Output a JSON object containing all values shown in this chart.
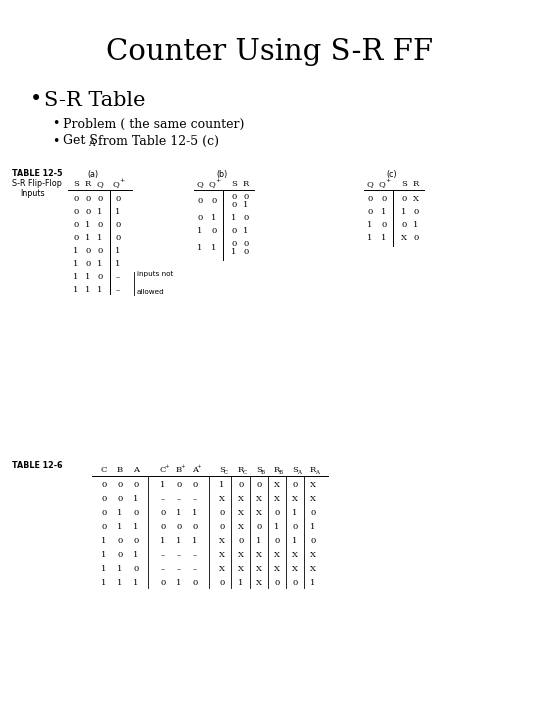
{
  "title": "Counter Using S-R FF",
  "bullet1": "S-R Table",
  "bullet2": "Problem ( the same counter)",
  "bullet3_pre": "Get S",
  "bullet3_sub": "A",
  "bullet3_post": " from Table 12-5 (c)",
  "bg_color": "#ffffff",
  "text_color": "#000000",
  "table_a_rows": [
    [
      "0",
      "0",
      "0",
      "0"
    ],
    [
      "0",
      "0",
      "1",
      "1"
    ],
    [
      "0",
      "1",
      "0",
      "0"
    ],
    [
      "0",
      "1",
      "1",
      "0"
    ],
    [
      "1",
      "0",
      "0",
      "1"
    ],
    [
      "1",
      "0",
      "1",
      "1"
    ],
    [
      "1",
      "1",
      "0",
      "–"
    ],
    [
      "1",
      "1",
      "1",
      "–"
    ]
  ],
  "table_c_rows": [
    [
      "0",
      "0",
      "0",
      "X"
    ],
    [
      "0",
      "1",
      "1",
      "0"
    ],
    [
      "1",
      "0",
      "0",
      "1"
    ],
    [
      "1",
      "1",
      "X",
      "0"
    ]
  ],
  "table6_rows": [
    [
      "0",
      "0",
      "0",
      "1",
      "0",
      "0",
      "1",
      "0",
      "0",
      "X",
      "0",
      "X"
    ],
    [
      "0",
      "0",
      "1",
      "–",
      "–",
      "–",
      "X",
      "X",
      "X",
      "X",
      "X",
      "X"
    ],
    [
      "0",
      "1",
      "0",
      "0",
      "1",
      "1",
      "0",
      "X",
      "X",
      "0",
      "1",
      "0"
    ],
    [
      "0",
      "1",
      "1",
      "0",
      "0",
      "0",
      "0",
      "X",
      "0",
      "1",
      "0",
      "1"
    ],
    [
      "1",
      "0",
      "0",
      "1",
      "1",
      "1",
      "X",
      "0",
      "1",
      "0",
      "1",
      "0"
    ],
    [
      "1",
      "0",
      "1",
      "–",
      "–",
      "–",
      "X",
      "X",
      "X",
      "X",
      "X",
      "X"
    ],
    [
      "1",
      "1",
      "0",
      "–",
      "–",
      "–",
      "X",
      "X",
      "X",
      "X",
      "X",
      "X"
    ],
    [
      "1",
      "1",
      "1",
      "0",
      "1",
      "0",
      "0",
      "1",
      "X",
      "0",
      "0",
      "1"
    ]
  ]
}
